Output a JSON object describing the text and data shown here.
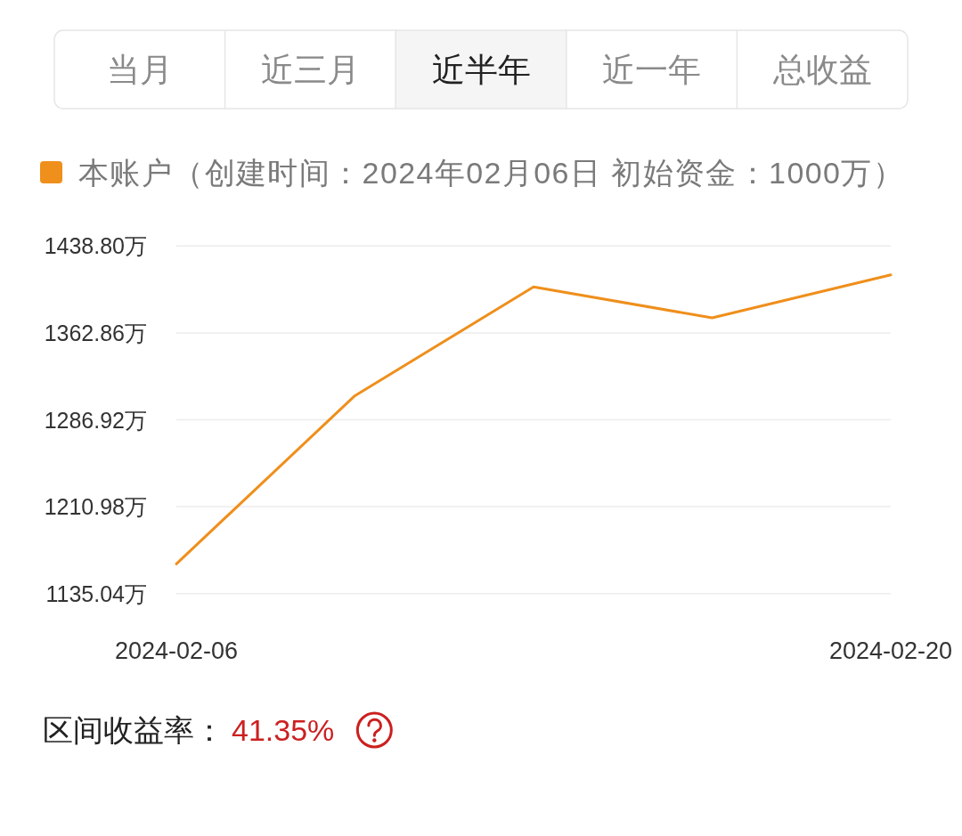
{
  "chart_data": {
    "type": "line",
    "categories": [
      "2024-02-06",
      null,
      null,
      null,
      "2024-02-20"
    ],
    "series": [
      {
        "name": "本账户（创建时间：2024年02月06日 初始资金：1000万）",
        "color": "#ef8f1c",
        "values": [
          1161,
          1308,
          1403,
          1376,
          1413.5
        ]
      }
    ],
    "ylim": [
      1135.04,
      1438.8
    ],
    "yticks": [
      {
        "value": 1135.04,
        "label": "1135.04万"
      },
      {
        "value": 1210.98,
        "label": "1210.98万"
      },
      {
        "value": 1286.92,
        "label": "1286.92万"
      },
      {
        "value": 1362.86,
        "label": "1362.86万"
      },
      {
        "value": 1438.8,
        "label": "1438.80万"
      }
    ],
    "grid": "y",
    "legend": "top left",
    "marker": "none",
    "line_style": "solid",
    "annotations": [
      "当月",
      "近三月",
      "近半年",
      "近一年",
      "总收益",
      "区间收益率：",
      "41.35%"
    ]
  }
}
